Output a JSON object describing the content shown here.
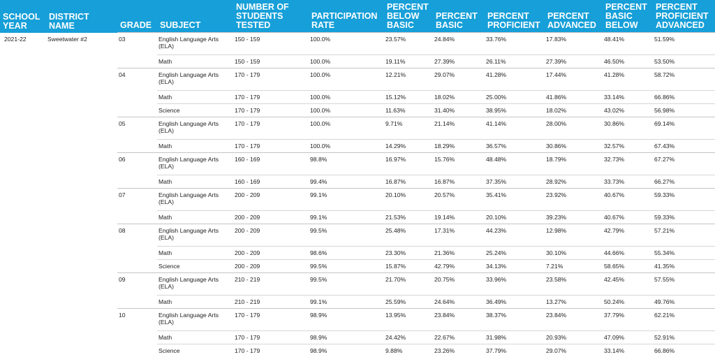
{
  "headers": {
    "school_year": "School Year",
    "district_name": "District Name",
    "grade": "Grade",
    "subject": "Subject",
    "num_tested": "Number of Students Tested",
    "participation": "Participation Rate",
    "below_basic": "Percent Below Basic",
    "basic": "Percent Basic",
    "proficient": "Percent Proficient",
    "advanced": "Percent Advanced",
    "basic_below": "Percent Basic Below",
    "prof_adv": "Percent Proficient Advanced"
  },
  "school_year": "2021-22",
  "district": "Sweetwater #2",
  "grades": [
    {
      "grade": "03",
      "rows": [
        [
          "English Language Arts (ELA)",
          "150 - 159",
          "100.0%",
          "23.57%",
          "24.84%",
          "33.76%",
          "17.83%",
          "48.41%",
          "51.59%"
        ],
        [
          "Math",
          "150 - 159",
          "100.0%",
          "19.11%",
          "27.39%",
          "26.11%",
          "27.39%",
          "46.50%",
          "53.50%"
        ]
      ]
    },
    {
      "grade": "04",
      "rows": [
        [
          "English Language Arts (ELA)",
          "170 - 179",
          "100.0%",
          "12.21%",
          "29.07%",
          "41.28%",
          "17.44%",
          "41.28%",
          "58.72%"
        ],
        [
          "Math",
          "170 - 179",
          "100.0%",
          "15.12%",
          "18.02%",
          "25.00%",
          "41.86%",
          "33.14%",
          "66.86%"
        ],
        [
          "Science",
          "170 - 179",
          "100.0%",
          "11.63%",
          "31.40%",
          "38.95%",
          "18.02%",
          "43.02%",
          "56.98%"
        ]
      ]
    },
    {
      "grade": "05",
      "rows": [
        [
          "English Language Arts (ELA)",
          "170 - 179",
          "100.0%",
          "9.71%",
          "21.14%",
          "41.14%",
          "28.00%",
          "30.86%",
          "69.14%"
        ],
        [
          "Math",
          "170 - 179",
          "100.0%",
          "14.29%",
          "18.29%",
          "36.57%",
          "30.86%",
          "32.57%",
          "67.43%"
        ]
      ]
    },
    {
      "grade": "06",
      "rows": [
        [
          "English Language Arts (ELA)",
          "160 - 169",
          "98.8%",
          "16.97%",
          "15.76%",
          "48.48%",
          "18.79%",
          "32.73%",
          "67.27%"
        ],
        [
          "Math",
          "160 - 169",
          "99.4%",
          "16.87%",
          "16.87%",
          "37.35%",
          "28.92%",
          "33.73%",
          "66.27%"
        ]
      ]
    },
    {
      "grade": "07",
      "rows": [
        [
          "English Language Arts (ELA)",
          "200 - 209",
          "99.1%",
          "20.10%",
          "20.57%",
          "35.41%",
          "23.92%",
          "40.67%",
          "59.33%"
        ],
        [
          "Math",
          "200 - 209",
          "99.1%",
          "21.53%",
          "19.14%",
          "20.10%",
          "39.23%",
          "40.67%",
          "59.33%"
        ]
      ]
    },
    {
      "grade": "08",
      "rows": [
        [
          "English Language Arts (ELA)",
          "200 - 209",
          "99.5%",
          "25.48%",
          "17.31%",
          "44.23%",
          "12.98%",
          "42.79%",
          "57.21%"
        ],
        [
          "Math",
          "200 - 209",
          "98.6%",
          "23.30%",
          "21.36%",
          "25.24%",
          "30.10%",
          "44.66%",
          "55.34%"
        ],
        [
          "Science",
          "200 - 209",
          "99.5%",
          "15.87%",
          "42.79%",
          "34.13%",
          "7.21%",
          "58.65%",
          "41.35%"
        ]
      ]
    },
    {
      "grade": "09",
      "rows": [
        [
          "English Language Arts (ELA)",
          "210 - 219",
          "99.5%",
          "21.70%",
          "20.75%",
          "33.96%",
          "23.58%",
          "42.45%",
          "57.55%"
        ],
        [
          "Math",
          "210 - 219",
          "99.1%",
          "25.59%",
          "24.64%",
          "36.49%",
          "13.27%",
          "50.24%",
          "49.76%"
        ]
      ]
    },
    {
      "grade": "10",
      "rows": [
        [
          "English Language Arts (ELA)",
          "170 - 179",
          "98.9%",
          "13.95%",
          "23.84%",
          "38.37%",
          "23.84%",
          "37.79%",
          "62.21%"
        ],
        [
          "Math",
          "170 - 179",
          "98.9%",
          "24.42%",
          "22.67%",
          "31.98%",
          "20.93%",
          "47.09%",
          "52.91%"
        ],
        [
          "Science",
          "170 - 179",
          "98.9%",
          "9.88%",
          "23.26%",
          "37.79%",
          "29.07%",
          "33.14%",
          "66.86%"
        ]
      ]
    }
  ]
}
